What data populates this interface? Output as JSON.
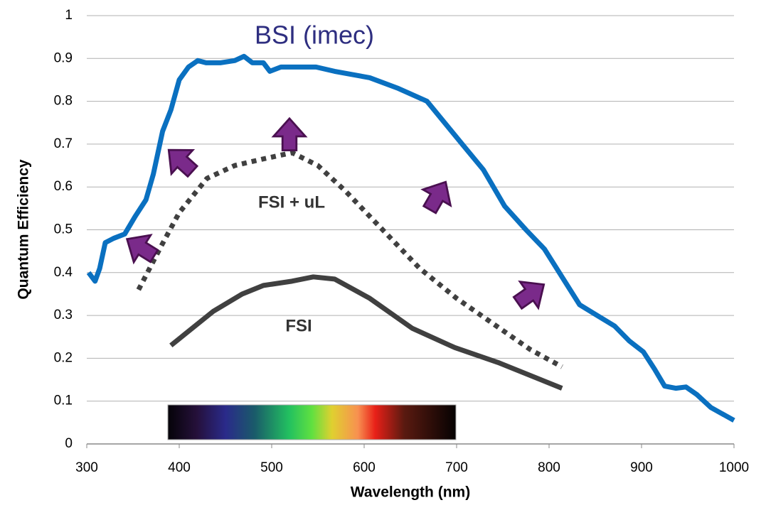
{
  "chart_data": {
    "type": "line",
    "x_label": "Wavelength (nm)",
    "y_label": "Quantum Efficiency",
    "xlim": [
      300,
      1000
    ],
    "xticks": [
      300,
      400,
      500,
      600,
      700,
      800,
      900,
      1000
    ],
    "ylim": [
      0,
      1
    ],
    "yticks": [
      0,
      0.1,
      0.2,
      0.3,
      0.4,
      0.5,
      0.6,
      0.7,
      0.8,
      0.9,
      1
    ],
    "grid": true,
    "series": [
      {
        "name": "BSI (imec)",
        "color": "#0a70c0",
        "line_style": "solid",
        "x": [
          302,
          309,
          314,
          320,
          329,
          341,
          352,
          364,
          372,
          382,
          391,
          400,
          410,
          420,
          429,
          445,
          460,
          470,
          479,
          491,
          498,
          510,
          529,
          548,
          568,
          606,
          637,
          668,
          687,
          706,
          729,
          752,
          775,
          795,
          814,
          833,
          852,
          871,
          887,
          902,
          914,
          925,
          937,
          948,
          960,
          975,
          1000
        ],
        "values": [
          0.4,
          0.38,
          0.41,
          0.47,
          0.48,
          0.49,
          0.53,
          0.57,
          0.63,
          0.73,
          0.78,
          0.85,
          0.88,
          0.895,
          0.89,
          0.89,
          0.895,
          0.905,
          0.89,
          0.89,
          0.87,
          0.88,
          0.88,
          0.88,
          0.87,
          0.855,
          0.83,
          0.8,
          0.75,
          0.7,
          0.64,
          0.555,
          0.5,
          0.455,
          0.39,
          0.325,
          0.3,
          0.275,
          0.24,
          0.215,
          0.175,
          0.135,
          0.13,
          0.133,
          0.115,
          0.085,
          0.055
        ]
      },
      {
        "name": "FSI + uL",
        "color": "#404040",
        "line_style": "dotted",
        "x": [
          356,
          380,
          400,
          430,
          460,
          490,
          522,
          550,
          580,
          620,
          660,
          700,
          740,
          780,
          814
        ],
        "values": [
          0.36,
          0.46,
          0.54,
          0.62,
          0.65,
          0.665,
          0.68,
          0.65,
          0.59,
          0.5,
          0.41,
          0.34,
          0.28,
          0.22,
          0.18
        ]
      },
      {
        "name": "FSI",
        "color": "#404040",
        "line_style": "solid",
        "x": [
          391,
          437,
          468,
          491,
          522,
          545,
          568,
          606,
          652,
          698,
          745,
          814
        ],
        "values": [
          0.23,
          0.31,
          0.35,
          0.37,
          0.38,
          0.39,
          0.385,
          0.34,
          0.27,
          0.225,
          0.19,
          0.13
        ]
      }
    ]
  }
}
